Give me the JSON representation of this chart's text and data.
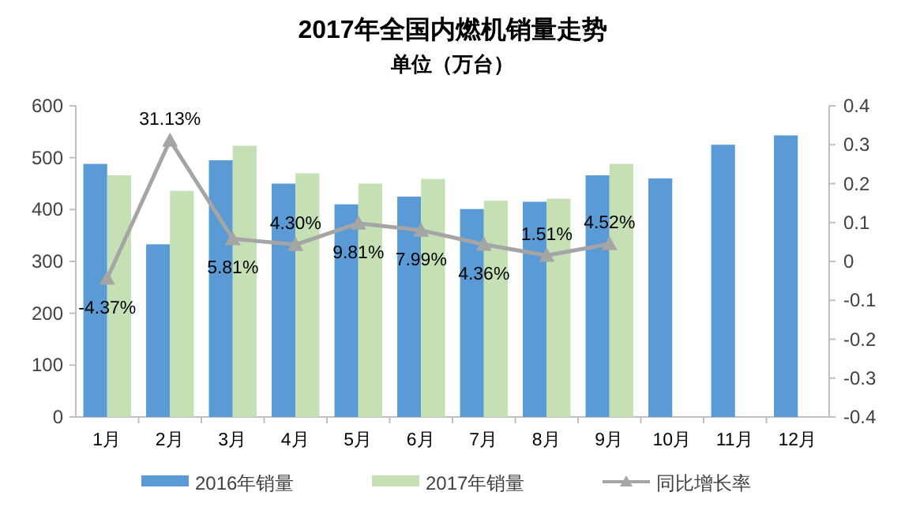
{
  "chart_data": {
    "type": "bar",
    "title": "2017年全国内燃机销量走势",
    "subtitle": "单位（万台）",
    "categories": [
      "1月",
      "2月",
      "3月",
      "4月",
      "5月",
      "6月",
      "7月",
      "8月",
      "9月",
      "10月",
      "11月",
      "12月"
    ],
    "series": [
      {
        "name": "2016年销量",
        "color": "#5b9bd5",
        "values": [
          488,
          333,
          495,
          450,
          410,
          425,
          401,
          415,
          466,
          460,
          525,
          543
        ]
      },
      {
        "name": "2017年销量",
        "color": "#c5e0b4",
        "values": [
          466,
          436,
          523,
          470,
          450,
          459,
          417,
          421,
          488,
          null,
          null,
          null
        ]
      },
      {
        "name": "同比增长率",
        "type": "line",
        "axis": "y2",
        "color": "#a5a5a5",
        "marker": "triangle",
        "values": [
          -0.0437,
          0.3113,
          0.0581,
          0.043,
          0.0981,
          0.0799,
          0.0436,
          0.0151,
          0.0452,
          null,
          null,
          null
        ],
        "value_labels": [
          "-4.37%",
          "31.13%",
          "5.81%",
          "4.30%",
          "9.81%",
          "7.99%",
          "4.36%",
          "1.51%",
          "4.52%",
          null,
          null,
          null
        ]
      }
    ],
    "ylim": [
      0,
      600
    ],
    "yticks": [
      0,
      100,
      200,
      300,
      400,
      500,
      600
    ],
    "y2lim": [
      -0.4,
      0.4
    ],
    "y2ticks": [
      -0.4,
      -0.3,
      -0.2,
      -0.1,
      0,
      0.1,
      0.2,
      0.3,
      0.4
    ],
    "legend": "bottom"
  }
}
